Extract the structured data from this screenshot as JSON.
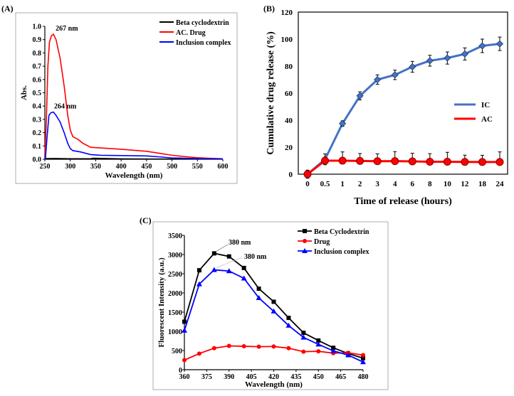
{
  "chart_data": [
    {
      "panel": "(A)",
      "type": "line",
      "xlabel": "Wavelength (nm)",
      "ylabel": "Abs.",
      "xlim": [
        250,
        600
      ],
      "ylim": [
        0,
        1.0
      ],
      "xticks": [
        250,
        300,
        350,
        400,
        450,
        500,
        550,
        600
      ],
      "yticks": [
        "0.0",
        "0.1",
        "0.2",
        "0.3",
        "0.4",
        "0.5",
        "0.6",
        "0.7",
        "0.8",
        "0.9",
        "1.0"
      ],
      "legend_position": "top-right",
      "annotations": [
        {
          "text": "267 nm",
          "x": 267,
          "y": 0.94
        },
        {
          "text": "264 nm",
          "x": 264,
          "y": 0.355
        }
      ],
      "series": [
        {
          "name": "Beta cyclodextrin",
          "color": "#000000",
          "x": [
            250,
            252,
            270,
            300,
            340,
            345,
            400,
            450,
            500,
            550,
            600
          ],
          "y": [
            0,
            0.005,
            0.006,
            0.004,
            0.004,
            0.008,
            0.003,
            0.002,
            0.002,
            0.002,
            0.002
          ]
        },
        {
          "name": "AC. Drug",
          "color": "#ff0000",
          "x": [
            250,
            253,
            256,
            259,
            263,
            267,
            272,
            280,
            288,
            295,
            300,
            305,
            315,
            325,
            340,
            360,
            400,
            450,
            475,
            500,
            525,
            550,
            575,
            600
          ],
          "y": [
            0.02,
            0.3,
            0.7,
            0.88,
            0.93,
            0.94,
            0.9,
            0.76,
            0.55,
            0.33,
            0.22,
            0.17,
            0.15,
            0.12,
            0.09,
            0.085,
            0.075,
            0.06,
            0.045,
            0.03,
            0.02,
            0.012,
            0.007,
            0.004
          ]
        },
        {
          "name": "Inclusion complex",
          "color": "#0000ff",
          "x": [
            251,
            254,
            258,
            262,
            267,
            272,
            280,
            288,
            295,
            300,
            305,
            320,
            340,
            360,
            400,
            450,
            475,
            500,
            550,
            600
          ],
          "y": [
            0,
            0.15,
            0.33,
            0.35,
            0.355,
            0.33,
            0.28,
            0.2,
            0.12,
            0.08,
            0.065,
            0.055,
            0.035,
            0.03,
            0.028,
            0.025,
            0.018,
            0.01,
            0.005,
            0.003
          ]
        }
      ]
    },
    {
      "panel": "(B)",
      "type": "line",
      "xlabel": "Time of release (hours)",
      "ylabel": "Cumulative drug release (%)",
      "ylim": [
        0,
        120
      ],
      "yticks": [
        0,
        20,
        40,
        60,
        80,
        100,
        120
      ],
      "categories": [
        "0",
        "0.5",
        "1",
        "2",
        "3",
        "4",
        "6",
        "8",
        "10",
        "12",
        "18",
        "24"
      ],
      "legend_position": "center-right",
      "series": [
        {
          "name": "IC",
          "color": "#4472c4",
          "marker": "diamond",
          "values": [
            0,
            11,
            37.5,
            58,
            70,
            73.5,
            79.5,
            84,
            86,
            89,
            95,
            96.5
          ],
          "errors": [
            3,
            4,
            2,
            3,
            3.5,
            3.5,
            4,
            4,
            4.5,
            4.5,
            5,
            5
          ]
        },
        {
          "name": "AC",
          "color": "#ff0000",
          "marker": "circle",
          "values": [
            0,
            10,
            10,
            9.8,
            9.6,
            9.7,
            9.5,
            9.2,
            9.2,
            9.1,
            9,
            9
          ],
          "errors": [
            2,
            5,
            6.5,
            5.5,
            5.5,
            7,
            6,
            6,
            7,
            5,
            5,
            7.5
          ]
        }
      ]
    },
    {
      "panel": "(C)",
      "type": "line",
      "xlabel": "Wavelength (nm)",
      "ylabel": "Fluorescent Intensity (a.u.)",
      "xlim": [
        360,
        480
      ],
      "ylim": [
        0,
        3500
      ],
      "xticks": [
        360,
        375,
        390,
        405,
        420,
        435,
        450,
        465,
        480
      ],
      "yticks": [
        0,
        500,
        1000,
        1500,
        2000,
        2500,
        3000,
        3500
      ],
      "legend_position": "top-right",
      "annotations": [
        {
          "text": "380 nm",
          "x": 380,
          "y": 3030
        },
        {
          "text": "380 nm",
          "x": 380,
          "y": 2600
        }
      ],
      "x": [
        360,
        370,
        380,
        390,
        400,
        410,
        420,
        430,
        440,
        450,
        460,
        470,
        480
      ],
      "series": [
        {
          "name": "Beta Cyclodextrin",
          "color": "#000000",
          "marker": "square",
          "values": [
            1250,
            2590,
            3030,
            2950,
            2650,
            2110,
            1770,
            1350,
            960,
            760,
            570,
            420,
            300
          ]
        },
        {
          "name": "Drug",
          "color": "#ff0000",
          "marker": "circle",
          "values": [
            250,
            420,
            560,
            620,
            610,
            600,
            605,
            560,
            470,
            480,
            430,
            440,
            380
          ]
        },
        {
          "name": "Inclusion complex",
          "color": "#0000ff",
          "marker": "triangle",
          "values": [
            1020,
            2230,
            2600,
            2570,
            2380,
            1870,
            1520,
            1150,
            840,
            660,
            490,
            380,
            200
          ]
        }
      ]
    }
  ]
}
